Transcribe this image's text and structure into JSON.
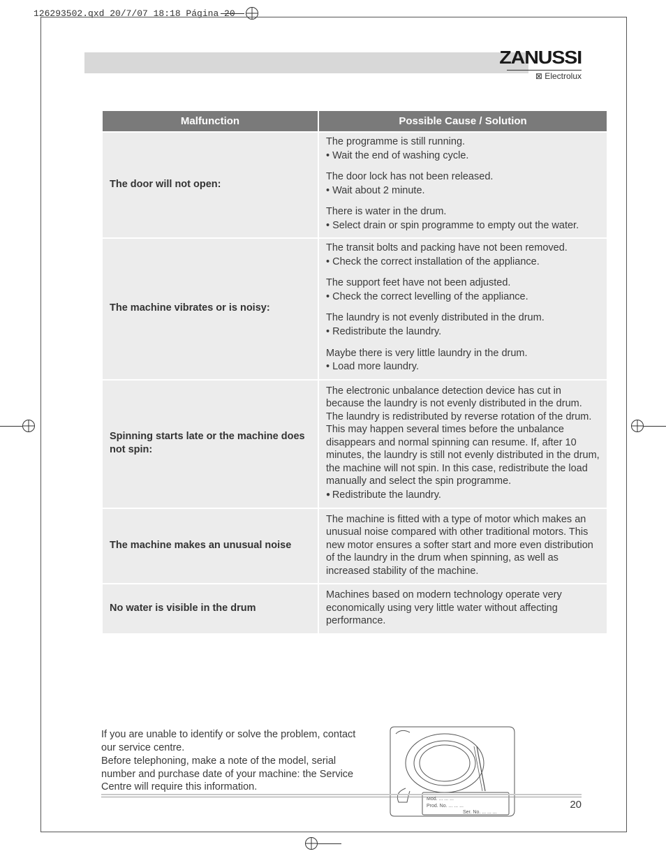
{
  "print_meta": "126293502.qxd  20/7/07  18:18  Página 20",
  "logo": {
    "main": "ZANUSSI",
    "sub": "⊠ Electrolux"
  },
  "page_number": "20",
  "table": {
    "headers": [
      "Malfunction",
      "Possible Cause / Solution"
    ],
    "rows": [
      {
        "malfunction": "The door will not open:",
        "causes": [
          {
            "text": "The programme is still running.",
            "bullets": [
              "Wait the end of washing cycle."
            ]
          },
          {
            "text": "The door lock has not been released.",
            "bullets": [
              "Wait about 2 minute."
            ]
          },
          {
            "text": "There is water in the drum.",
            "bullets": [
              "Select drain or spin programme to empty out the water."
            ]
          }
        ]
      },
      {
        "malfunction": "The machine vibrates or is noisy:",
        "causes": [
          {
            "text": "The transit bolts and packing have not been removed.",
            "bullets": [
              "Check the correct installation of the appliance."
            ]
          },
          {
            "text": "The support feet have not been adjusted.",
            "bullets": [
              "Check the correct levelling of the appliance."
            ]
          },
          {
            "text": "The laundry is not evenly distributed in the drum.",
            "bullets": [
              "Redistribute the laundry."
            ]
          },
          {
            "text": "Maybe there is very little laundry in the drum.",
            "bullets": [
              "Load more laundry."
            ]
          }
        ]
      },
      {
        "malfunction": "Spinning starts late or the machine does not spin:",
        "causes": [
          {
            "text": "The electronic unbalance detection device has cut in because the laundry is not  evenly distributed  in the drum. The laundry is redistributed by reverse rotation of the drum. This may happen several times before the unbalance disappears and normal spinning can resume. If, after 10 minutes, the laundry is still not evenly distributed in the drum, the machine will not spin. In this case, redistribute the load manually and select the spin programme.",
            "dot_bullets": [
              "Redistribute the laundry."
            ]
          }
        ]
      },
      {
        "malfunction": "The machine makes an unusual noise",
        "causes": [
          {
            "text": "The machine is fitted with a type of motor which makes an unusual noise compared with other traditional motors. This new motor ensures a softer start and more even distribution of the laundry in the drum when spinning, as well as increased stability of the machine."
          }
        ]
      },
      {
        "malfunction": "No water is visible in the drum",
        "causes": [
          {
            "text": "Machines based on modern technology operate very economically using very little water  without affecting performance."
          }
        ]
      }
    ]
  },
  "after_para": "If you are unable to identify or solve the problem, contact our service centre.\nBefore telephoning, make a note of the model, serial number and purchase date of your machine: the Service Centre will require this information.",
  "plate": {
    "l1": "Mod. ... ... ...",
    "l2": "Prod. No. ... ... ...",
    "l3": "Ser. No. ... ... ..."
  }
}
